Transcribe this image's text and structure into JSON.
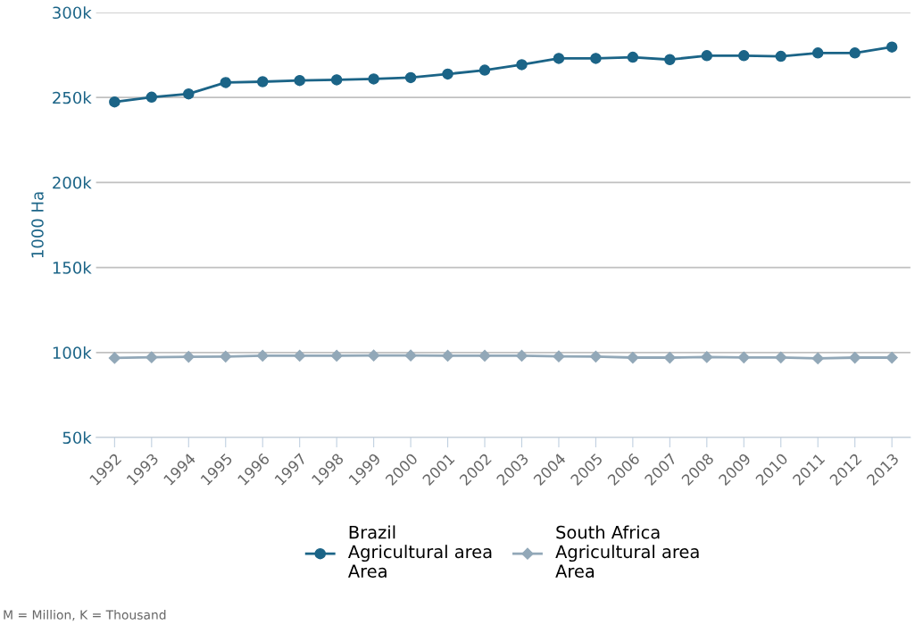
{
  "chart_data": {
    "type": "line",
    "ylabel": "1000 Ha",
    "categories": [
      "1992",
      "1993",
      "1994",
      "1995",
      "1996",
      "1997",
      "1998",
      "1999",
      "2000",
      "2001",
      "2002",
      "2003",
      "2004",
      "2005",
      "2006",
      "2007",
      "2008",
      "2009",
      "2010",
      "2011",
      "2012",
      "2013"
    ],
    "series": [
      {
        "name": "Brazil\nAgricultural area\nArea",
        "color": "#1b6487",
        "marker": "circle",
        "values": [
          247400,
          250200,
          252100,
          258800,
          259300,
          260000,
          260400,
          260900,
          261700,
          263800,
          266100,
          269300,
          273000,
          273000,
          273700,
          272300,
          274600,
          274600,
          274200,
          276200,
          276200,
          279700
        ]
      },
      {
        "name": "South Africa\nAgricultural area\nArea",
        "color": "#92a8b8",
        "marker": "diamond",
        "values": [
          96800,
          97200,
          97500,
          97600,
          98100,
          98100,
          98100,
          98200,
          98200,
          98100,
          98100,
          98100,
          97700,
          97600,
          97000,
          97000,
          97300,
          97100,
          97100,
          96500,
          97000,
          97000
        ]
      }
    ],
    "ylim": [
      50000,
      300000
    ],
    "yticks": [
      {
        "value": 50000,
        "label": "50k"
      },
      {
        "value": 100000,
        "label": "100k"
      },
      {
        "value": 150000,
        "label": "150k"
      },
      {
        "value": 200000,
        "label": "200k"
      },
      {
        "value": 250000,
        "label": "250k"
      },
      {
        "value": 300000,
        "label": "300k"
      }
    ],
    "grid": "y",
    "legend": "bottom",
    "line_style": "solid",
    "annotations": [
      "M = Million, K = Thousand"
    ]
  }
}
